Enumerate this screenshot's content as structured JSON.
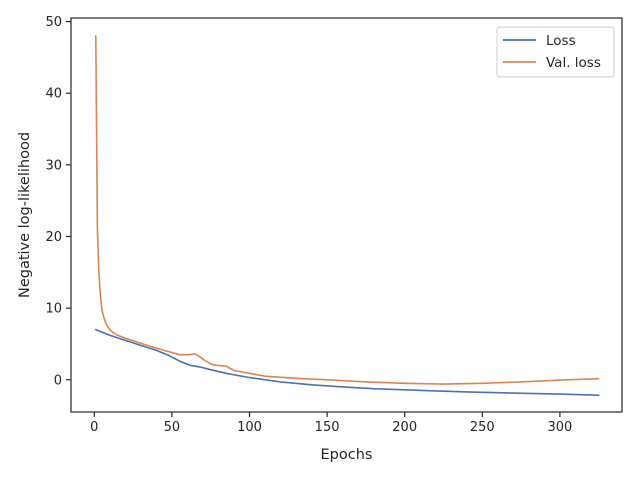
{
  "chart_data": {
    "type": "line",
    "xlabel": "Epochs",
    "ylabel": "Negative log-likelihood",
    "xlim": [
      -15,
      340
    ],
    "ylim": [
      -4.5,
      50.5
    ],
    "xticks": [
      0,
      50,
      100,
      150,
      200,
      250,
      300
    ],
    "yticks": [
      0,
      10,
      20,
      30,
      40,
      50
    ],
    "grid": false,
    "legend_position": "top-right",
    "series": [
      {
        "name": "Loss",
        "color": "#4c72b0",
        "x": [
          1,
          10,
          20,
          30,
          40,
          48,
          55,
          62,
          68,
          75,
          85,
          100,
          120,
          140,
          160,
          180,
          200,
          220,
          240,
          260,
          280,
          300,
          325
        ],
        "y": [
          7.0,
          6.2,
          5.5,
          4.8,
          4.1,
          3.4,
          2.6,
          2.0,
          1.8,
          1.4,
          0.9,
          0.3,
          -0.3,
          -0.7,
          -1.0,
          -1.25,
          -1.4,
          -1.55,
          -1.7,
          -1.8,
          -1.9,
          -2.0,
          -2.15
        ]
      },
      {
        "name": "Val. loss",
        "color": "#dd8452",
        "x": [
          1,
          2,
          3,
          4,
          5,
          6,
          7,
          8,
          10,
          12,
          15,
          20,
          30,
          40,
          50,
          55,
          60,
          65,
          68,
          72,
          76,
          80,
          85,
          90,
          100,
          110,
          130,
          150,
          175,
          200,
          225,
          250,
          275,
          300,
          325
        ],
        "y": [
          48.0,
          21.0,
          15.0,
          11.5,
          9.8,
          8.8,
          8.2,
          7.6,
          7.0,
          6.6,
          6.2,
          5.8,
          5.1,
          4.4,
          3.8,
          3.5,
          3.5,
          3.6,
          3.2,
          2.6,
          2.1,
          2.0,
          1.9,
          1.3,
          0.9,
          0.5,
          0.2,
          0.0,
          -0.3,
          -0.5,
          -0.6,
          -0.5,
          -0.3,
          -0.05,
          0.15
        ]
      }
    ]
  }
}
